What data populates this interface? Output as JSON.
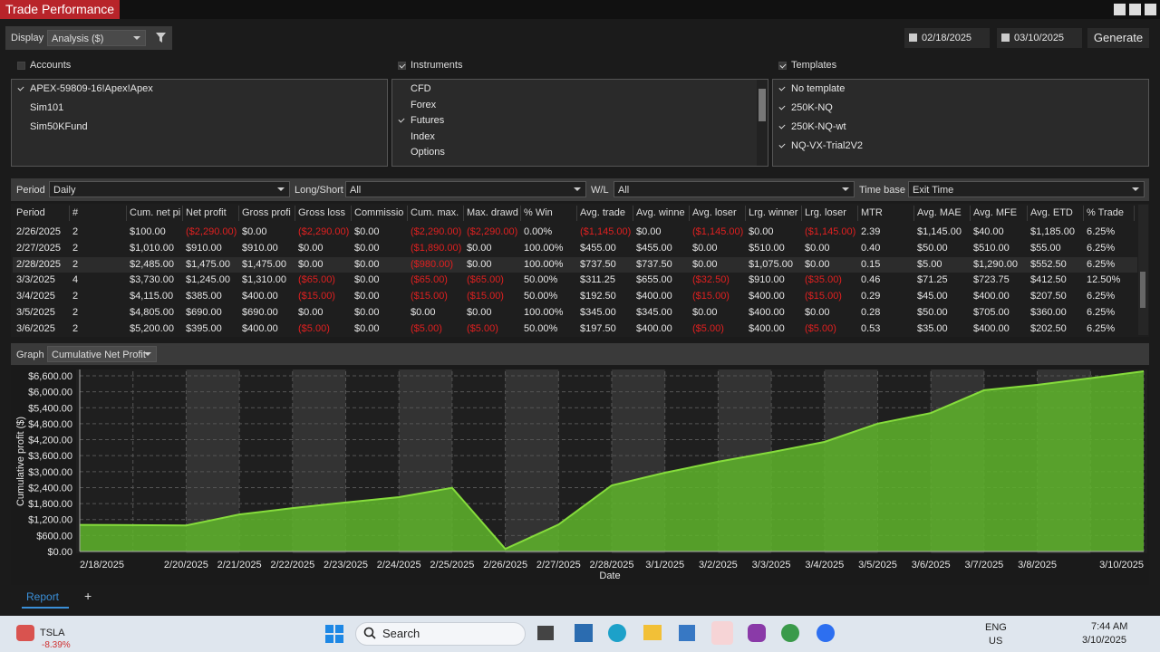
{
  "window": {
    "title": "Trade Performance"
  },
  "toolbar": {
    "display_label": "Display",
    "display_value": "Analysis ($)",
    "start_date": "02/18/2025",
    "end_date": "03/10/2025",
    "generate": "Generate"
  },
  "accounts": {
    "label": "Accounts",
    "checked": false,
    "items": [
      {
        "label": "APEX-59809-16!Apex!Apex",
        "checked": true
      },
      {
        "label": "Sim101",
        "checked": false
      },
      {
        "label": "Sim50KFund",
        "checked": false
      }
    ]
  },
  "instruments": {
    "label": "Instruments",
    "checked": true,
    "items": [
      {
        "label": "CFD",
        "checked": false
      },
      {
        "label": "Forex",
        "checked": false
      },
      {
        "label": "Futures",
        "checked": true
      },
      {
        "label": "Index",
        "checked": false
      },
      {
        "label": "Options",
        "checked": false
      }
    ]
  },
  "templates": {
    "label": "Templates",
    "checked": true,
    "items": [
      {
        "label": "No template",
        "checked": true
      },
      {
        "label": "250K-NQ",
        "checked": true
      },
      {
        "label": "250K-NQ-wt",
        "checked": true
      },
      {
        "label": "NQ-VX-Trial2V2",
        "checked": true
      }
    ]
  },
  "filters": [
    {
      "label": "Period",
      "value": "Daily"
    },
    {
      "label": "Long/Short",
      "value": "All"
    },
    {
      "label": "W/L",
      "value": "All"
    },
    {
      "label": "Time base",
      "value": "Exit Time"
    }
  ],
  "table": {
    "headers": [
      "Period",
      "#",
      "Cum. net pi",
      "Net profit",
      "Gross profi",
      "Gross loss",
      "Commissio",
      "Cum. max.",
      "Max. drawd",
      "% Win",
      "Avg. trade",
      "Avg. winne",
      "Avg. loser",
      "Lrg. winner",
      "Lrg. loser",
      "MTR",
      "Avg. MAE",
      "Avg. MFE",
      "Avg. ETD",
      "% Trade"
    ],
    "rows": [
      [
        "2/26/2025",
        "2",
        "$100.00",
        "($2,290.00)",
        "$0.00",
        "($2,290.00)",
        "$0.00",
        "($2,290.00)",
        "($2,290.00)",
        "0.00%",
        "($1,145.00)",
        "$0.00",
        "($1,145.00)",
        "$0.00",
        "($1,145.00)",
        "2.39",
        "$1,145.00",
        "$40.00",
        "$1,185.00",
        "6.25%"
      ],
      [
        "2/27/2025",
        "2",
        "$1,010.00",
        "$910.00",
        "$910.00",
        "$0.00",
        "$0.00",
        "($1,890.00)",
        "$0.00",
        "100.00%",
        "$455.00",
        "$455.00",
        "$0.00",
        "$510.00",
        "$0.00",
        "0.40",
        "$50.00",
        "$510.00",
        "$55.00",
        "6.25%"
      ],
      [
        "2/28/2025",
        "2",
        "$2,485.00",
        "$1,475.00",
        "$1,475.00",
        "$0.00",
        "$0.00",
        "($980.00)",
        "$0.00",
        "100.00%",
        "$737.50",
        "$737.50",
        "$0.00",
        "$1,075.00",
        "$0.00",
        "0.15",
        "$5.00",
        "$1,290.00",
        "$552.50",
        "6.25%"
      ],
      [
        "3/3/2025",
        "4",
        "$3,730.00",
        "$1,245.00",
        "$1,310.00",
        "($65.00)",
        "$0.00",
        "($65.00)",
        "($65.00)",
        "50.00%",
        "$311.25",
        "$655.00",
        "($32.50)",
        "$910.00",
        "($35.00)",
        "0.46",
        "$71.25",
        "$723.75",
        "$412.50",
        "12.50%"
      ],
      [
        "3/4/2025",
        "2",
        "$4,115.00",
        "$385.00",
        "$400.00",
        "($15.00)",
        "$0.00",
        "($15.00)",
        "($15.00)",
        "50.00%",
        "$192.50",
        "$400.00",
        "($15.00)",
        "$400.00",
        "($15.00)",
        "0.29",
        "$45.00",
        "$400.00",
        "$207.50",
        "6.25%"
      ],
      [
        "3/5/2025",
        "2",
        "$4,805.00",
        "$690.00",
        "$690.00",
        "$0.00",
        "$0.00",
        "$0.00",
        "$0.00",
        "100.00%",
        "$345.00",
        "$345.00",
        "$0.00",
        "$400.00",
        "$0.00",
        "0.28",
        "$50.00",
        "$705.00",
        "$360.00",
        "6.25%"
      ],
      [
        "3/6/2025",
        "2",
        "$5,200.00",
        "$395.00",
        "$400.00",
        "($5.00)",
        "$0.00",
        "($5.00)",
        "($5.00)",
        "50.00%",
        "$197.50",
        "$400.00",
        "($5.00)",
        "$400.00",
        "($5.00)",
        "0.53",
        "$35.00",
        "$400.00",
        "$202.50",
        "6.25%"
      ]
    ]
  },
  "graph": {
    "label": "Graph",
    "value": "Cumulative Net Profit"
  },
  "chart_data": {
    "type": "area",
    "y_label": "Cumulative profit ($)",
    "x_label": "Date",
    "categories": [
      "2/18/2025",
      null,
      "2/20/2025",
      "2/21/2025",
      "2/22/2025",
      "2/23/2025",
      "2/24/2025",
      "2/25/2025",
      "2/26/2025",
      "2/27/2025",
      "2/28/2025",
      "3/1/2025",
      "3/2/2025",
      "3/3/2025",
      "3/4/2025",
      "3/5/2025",
      "3/6/2025",
      "3/7/2025",
      "3/8/2025",
      null,
      "3/10/2025"
    ],
    "values": [
      1000,
      990,
      980,
      1390,
      1630,
      1840,
      2040,
      2390,
      100,
      1010,
      2485,
      2960,
      3370,
      3730,
      4115,
      4805,
      5200,
      6060,
      6260,
      6510,
      6770
    ],
    "color": "#5fb52c",
    "line_color": "#86dc3c",
    "ylim": [
      0,
      6770
    ],
    "yticks": [
      {
        "value": 0,
        "label": "$0.00"
      },
      {
        "value": 600,
        "label": "$600.00"
      },
      {
        "value": 1200,
        "label": "$1,200.00"
      },
      {
        "value": 1800,
        "label": "$1,800.00"
      },
      {
        "value": 2400,
        "label": "$2,400.00"
      },
      {
        "value": 3000,
        "label": "$3,000.00"
      },
      {
        "value": 3600,
        "label": "$3,600.00"
      },
      {
        "value": 4200,
        "label": "$4,200.00"
      },
      {
        "value": 4800,
        "label": "$4,800.00"
      },
      {
        "value": 5400,
        "label": "$5,400.00"
      },
      {
        "value": 6000,
        "label": "$6,000.00"
      },
      {
        "value": 6600,
        "label": "$6,600.00"
      }
    ],
    "grid": true
  },
  "tabs": {
    "active": "Report",
    "add": "+"
  },
  "taskbar": {
    "ticker": "TSLA",
    "change": "-8.39%",
    "search": "Search",
    "lang": "ENG",
    "region": "US",
    "time": "7:44 AM",
    "date": "3/10/2025"
  }
}
